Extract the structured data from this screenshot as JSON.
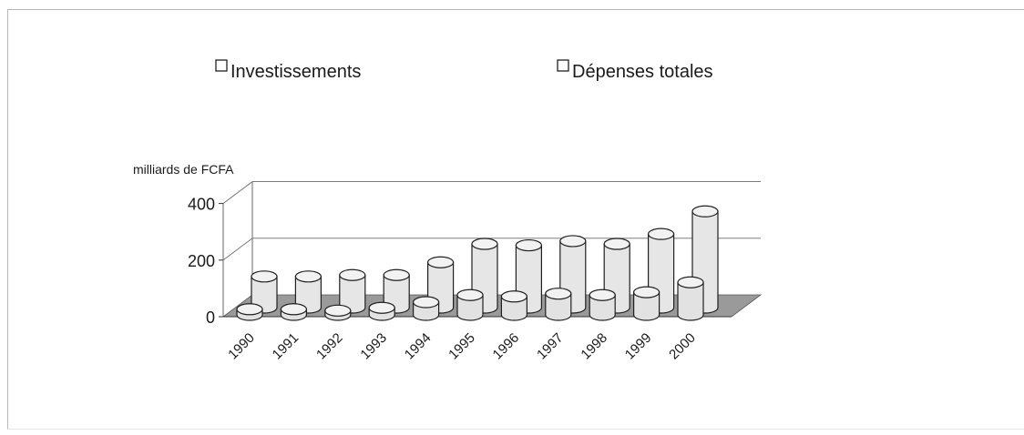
{
  "chart_data": {
    "type": "bar",
    "style": "3d-cylinder",
    "categories": [
      "1990",
      "1991",
      "1992",
      "1993",
      "1994",
      "1995",
      "1996",
      "1997",
      "1998",
      "1999",
      "2000"
    ],
    "series": [
      {
        "name": "Investissements",
        "values": [
          20,
          20,
          15,
          25,
          45,
          70,
          65,
          75,
          70,
          80,
          115
        ]
      },
      {
        "name": "Dépenses totales",
        "values": [
          110,
          110,
          115,
          115,
          160,
          225,
          220,
          235,
          225,
          260,
          340
        ]
      }
    ],
    "title": "",
    "xlabel": "",
    "ylabel": "milliards de FCFA",
    "ylim": [
      0,
      400
    ],
    "yticks": [
      "0",
      "200",
      "400"
    ],
    "grid": true,
    "legend_position": "top",
    "colors": {
      "investissements": "#e2e2e2",
      "depenses_totales": "#e6e6e6",
      "floor": "#9a9a9a",
      "outline": "#202020",
      "gridline": "#6a6a6a",
      "frame": "#b8b8b8"
    }
  }
}
